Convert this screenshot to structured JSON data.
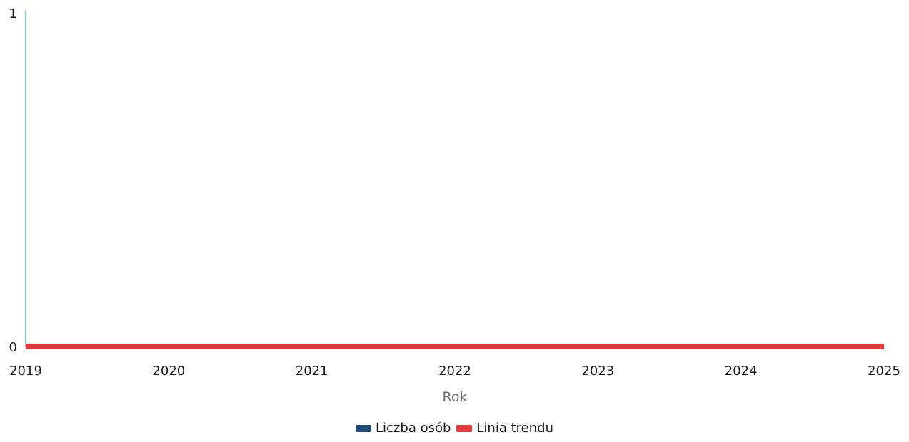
{
  "chart_data": {
    "type": "line",
    "x": [
      2019,
      2020,
      2021,
      2022,
      2023,
      2024,
      2025
    ],
    "xlabel": "Rok",
    "ylabel": "",
    "ylim": [
      0,
      1
    ],
    "yticks": [
      "0",
      "1"
    ],
    "xticks": [
      "2019",
      "2020",
      "2021",
      "2022",
      "2023",
      "2024",
      "2025"
    ],
    "series": [
      {
        "name": "Liczba osób",
        "color": "#1f4e79",
        "values": [
          0,
          0,
          0,
          0,
          0,
          0,
          0
        ]
      },
      {
        "name": "Linia trendu",
        "color": "#e03a3a",
        "values": [
          0,
          0,
          0,
          0,
          0,
          0,
          0
        ]
      }
    ],
    "legend": "bottom-center",
    "grid": false
  }
}
